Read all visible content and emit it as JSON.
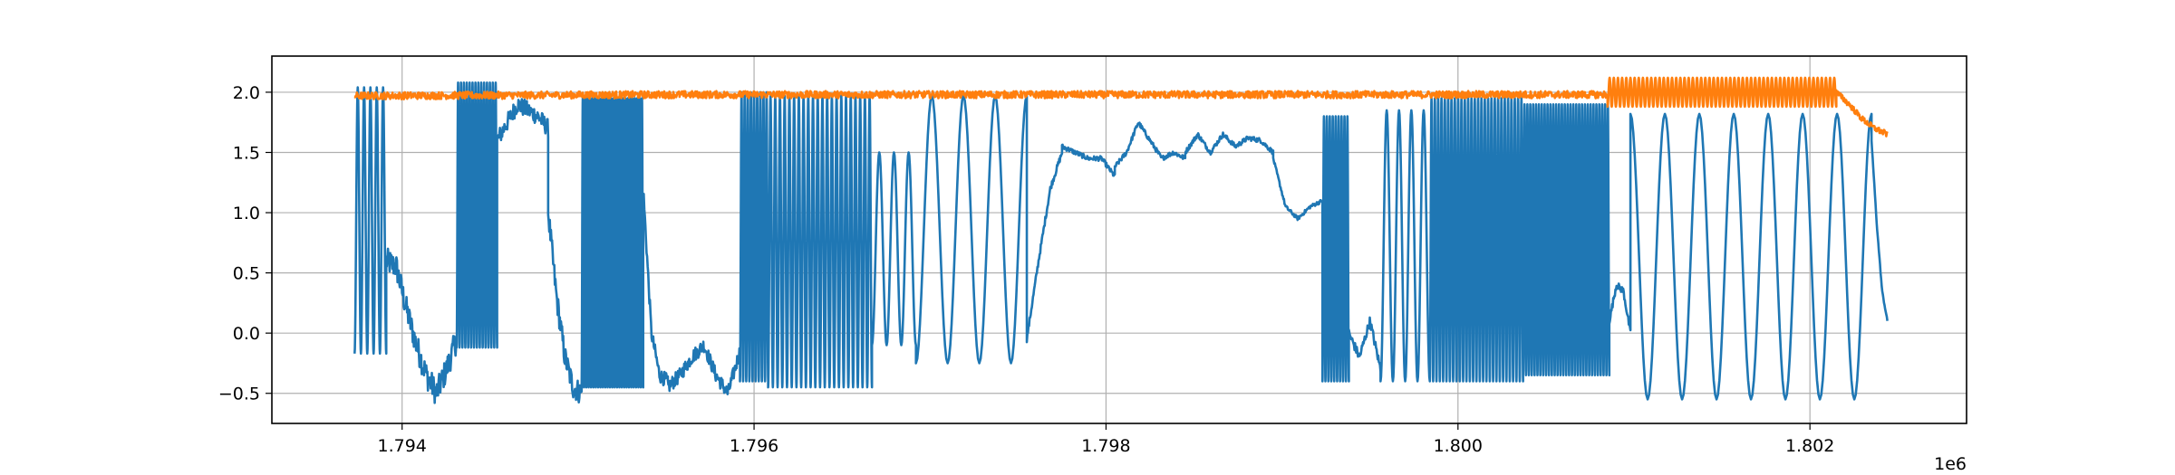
{
  "chart_data": {
    "type": "line",
    "title": "",
    "xlabel": "",
    "ylabel": "",
    "x_offset_label": "1e6",
    "xlim": [
      1.79326,
      1.80289
    ],
    "ylim": [
      -0.75,
      2.3
    ],
    "grid": true,
    "xticks": [
      1.794,
      1.796,
      1.798,
      1.8,
      1.802
    ],
    "xtick_labels": [
      "1.794",
      "1.796",
      "1.798",
      "1.800",
      "1.802"
    ],
    "yticks": [
      -0.5,
      0.0,
      0.5,
      1.0,
      1.5,
      2.0
    ],
    "ytick_labels": [
      "−0.5",
      "0.0",
      "0.5",
      "1.0",
      "1.5",
      "2.0"
    ],
    "series": [
      {
        "color": "#1f77b4",
        "segments": [
          {
            "kind": "osc",
            "x0": 1.79373,
            "x1": 1.79391,
            "cycles": 5,
            "lo": -0.17,
            "hi": 2.04
          },
          {
            "kind": "noisy",
            "x0": 1.79391,
            "x1": 1.79431,
            "ys": [
              0.6,
              0.55,
              0.2,
              -0.1,
              -0.35,
              -0.5,
              -0.3,
              -0.05
            ],
            "noise": 0.22
          },
          {
            "kind": "osc",
            "x0": 1.79431,
            "x1": 1.79454,
            "cycles": 14,
            "lo": -0.12,
            "hi": 2.08
          },
          {
            "kind": "noisy",
            "x0": 1.79454,
            "x1": 1.79483,
            "ys": [
              1.6,
              1.75,
              1.9,
              1.85,
              1.8,
              1.7
            ],
            "noise": 0.15
          },
          {
            "kind": "noisy",
            "x0": 1.79483,
            "x1": 1.79502,
            "ys": [
              1.0,
              0.3,
              -0.2,
              -0.45,
              -0.5
            ],
            "noise": 0.2
          },
          {
            "kind": "osc",
            "x0": 1.79502,
            "x1": 1.79537,
            "cycles": 26,
            "lo": -0.45,
            "hi": 1.95
          },
          {
            "kind": "noisy",
            "x0": 1.79537,
            "x1": 1.79551,
            "ys": [
              1.2,
              0.0,
              -0.35,
              -0.4
            ],
            "noise": 0.12
          },
          {
            "kind": "noisy",
            "x0": 1.79551,
            "x1": 1.79592,
            "ys": [
              -0.45,
              -0.35,
              -0.2,
              -0.1,
              -0.35,
              -0.5,
              -0.15
            ],
            "noise": 0.12
          },
          {
            "kind": "osc",
            "x0": 1.79592,
            "x1": 1.79608,
            "cycles": 9,
            "lo": -0.4,
            "hi": 2.0
          },
          {
            "kind": "osc",
            "x0": 1.79608,
            "x1": 1.79667,
            "cycles": 22,
            "lo": -0.45,
            "hi": 1.97
          },
          {
            "kind": "osc",
            "x0": 1.79667,
            "x1": 1.79692,
            "cycles": 3,
            "lo": -0.1,
            "hi": 1.5
          },
          {
            "kind": "osc",
            "x0": 1.79692,
            "x1": 1.79755,
            "cycles": 3.5,
            "lo": -0.25,
            "hi": 1.97
          },
          {
            "kind": "noisy",
            "x0": 1.79755,
            "x1": 1.79775,
            "ys": [
              -0.05,
              0.6,
              1.2,
              1.5
            ],
            "noise": 0.05
          },
          {
            "kind": "noisy",
            "x0": 1.79775,
            "x1": 1.79805,
            "ys": [
              1.55,
              1.5,
              1.45,
              1.45,
              1.3
            ],
            "noise": 0.04
          },
          {
            "kind": "noisy",
            "x0": 1.79805,
            "x1": 1.79845,
            "ys": [
              1.38,
              1.5,
              1.75,
              1.6,
              1.45,
              1.5,
              1.45
            ],
            "noise": 0.04
          },
          {
            "kind": "noisy",
            "x0": 1.79845,
            "x1": 1.79895,
            "ys": [
              1.5,
              1.65,
              1.5,
              1.65,
              1.55,
              1.62,
              1.6,
              1.5
            ],
            "noise": 0.04
          },
          {
            "kind": "noisy",
            "x0": 1.79895,
            "x1": 1.79923,
            "ys": [
              1.45,
              1.05,
              0.95,
              1.05,
              1.1
            ],
            "noise": 0.03
          },
          {
            "kind": "osc",
            "x0": 1.79923,
            "x1": 1.79938,
            "cycles": 9,
            "lo": -0.4,
            "hi": 1.8
          },
          {
            "kind": "noisy",
            "x0": 1.79938,
            "x1": 1.79956,
            "ys": [
              0.0,
              -0.2,
              0.1,
              -0.3
            ],
            "noise": 0.08
          },
          {
            "kind": "osc",
            "x0": 1.79956,
            "x1": 1.79984,
            "cycles": 4,
            "lo": -0.4,
            "hi": 1.85
          },
          {
            "kind": "osc",
            "x0": 1.79984,
            "x1": 1.80037,
            "cycles": 28,
            "lo": -0.4,
            "hi": 1.95
          },
          {
            "kind": "osc",
            "x0": 1.80037,
            "x1": 1.80086,
            "cycles": 30,
            "lo": -0.35,
            "hi": 1.9
          },
          {
            "kind": "noisy",
            "x0": 1.80086,
            "x1": 1.80098,
            "ys": [
              0.1,
              0.4,
              0.35,
              0.0
            ],
            "noise": 0.06
          },
          {
            "kind": "osc",
            "x0": 1.80098,
            "x1": 1.80235,
            "cycles": 7,
            "lo": -0.55,
            "hi": 1.82,
            "phase": 3.14
          },
          {
            "kind": "noisy",
            "x0": 1.80235,
            "x1": 1.80244,
            "ys": [
              1.6,
              0.9,
              0.35,
              0.1
            ],
            "noise": 0.02
          }
        ]
      },
      {
        "color": "#ff7f0e",
        "segments": [
          {
            "kind": "noisy",
            "x0": 1.79373,
            "x1": 1.80085,
            "ys": [
              1.97,
              1.98,
              1.98,
              1.98,
              1.98
            ],
            "noise": 0.06
          },
          {
            "kind": "osc",
            "x0": 1.80085,
            "x1": 1.80215,
            "cycles": 55,
            "lo": 1.88,
            "hi": 2.12
          },
          {
            "kind": "noisy",
            "x0": 1.80215,
            "x1": 1.80244,
            "ys": [
              2.0,
              1.9,
              1.78,
              1.7,
              1.65
            ],
            "noise": 0.05
          }
        ]
      }
    ]
  }
}
